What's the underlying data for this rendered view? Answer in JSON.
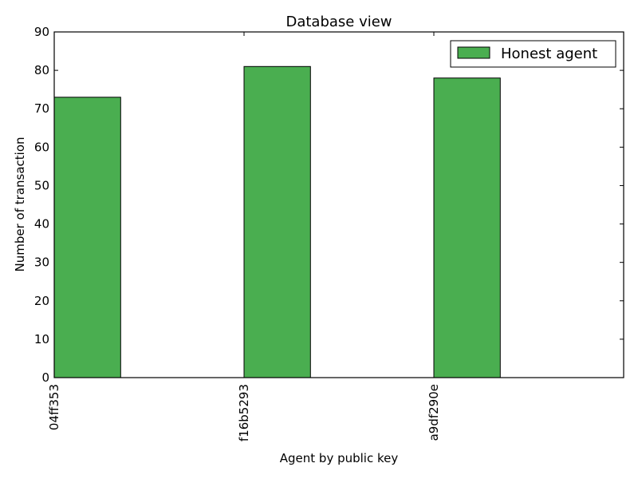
{
  "chart_data": {
    "type": "bar",
    "title": "Database view",
    "xlabel": "Agent by public key",
    "ylabel": "Number of transaction",
    "categories": [
      "04ff353",
      "f16b5293",
      "a9df290e"
    ],
    "series": [
      {
        "name": "Honest agent",
        "values": [
          73,
          81,
          78
        ],
        "color": "#4aae50"
      }
    ],
    "ylim": [
      0,
      90
    ],
    "yticks": [
      0,
      10,
      20,
      30,
      40,
      50,
      60,
      70,
      80,
      90
    ],
    "grid": false,
    "legend_position": "top-right"
  }
}
